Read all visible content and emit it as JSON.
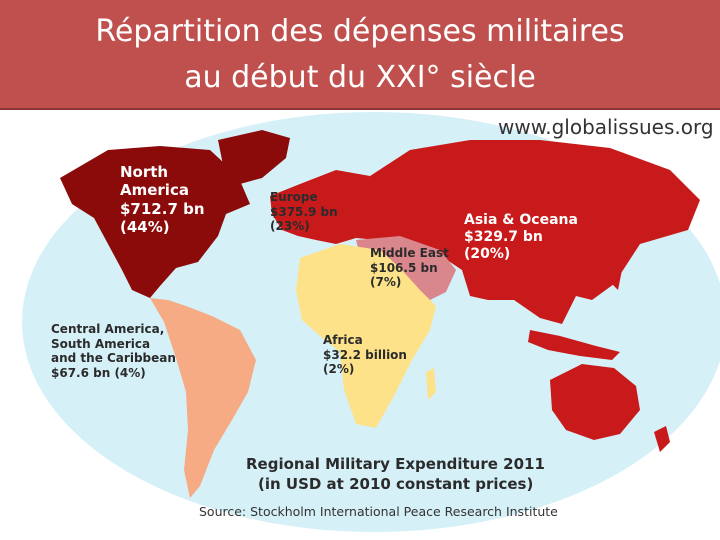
{
  "title": {
    "line1": "Répartition des dépenses militaires",
    "line2": "au début du XXI° siècle"
  },
  "watermark": "www.globalissues.org",
  "regions": {
    "north_america": {
      "line1": "North",
      "line2": "America",
      "amount": "$712.7 bn",
      "share": "(44%)",
      "color": "#8b0a0a"
    },
    "europe": {
      "name": "Europe",
      "amount": "$375.9 bn",
      "share": "(23%)",
      "color": "#c81a1a"
    },
    "middle_east": {
      "name": "Middle East",
      "amount": "$106.5 bn",
      "share": "(7%)",
      "color": "#d9868c"
    },
    "asia_oceania": {
      "name": "Asia & Oceana",
      "amount": "$329.7 bn",
      "share": "(20%)",
      "color": "#c81a1a"
    },
    "africa": {
      "name": "Africa",
      "amount": "$32.2 billion",
      "share": "(2%)",
      "color": "#fde28a"
    },
    "latin_america": {
      "line1": "Central America,",
      "line2": "South America",
      "line3": "and the Caribbean",
      "amount_share": "$67.6 bn (4%)",
      "color": "#f6ab84"
    }
  },
  "footer": {
    "line1": "Regional Military Expenditure 2011",
    "line2": "(in USD at 2010 constant prices)",
    "source": "Source: Stockholm International Peace Research Institute"
  },
  "colors": {
    "title_bar": "#c0504d",
    "ocean": "#d6f0f8"
  }
}
